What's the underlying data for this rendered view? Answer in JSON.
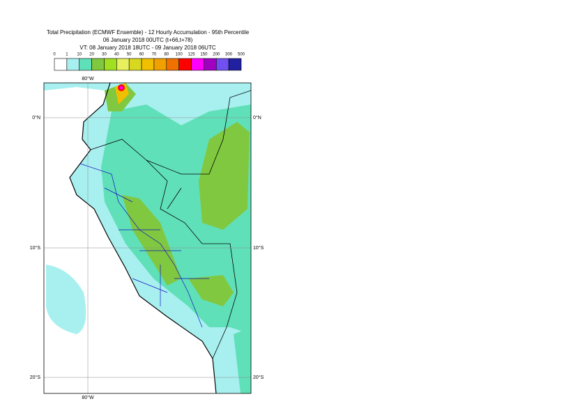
{
  "header": {
    "title": [
      "Total Precipitation (ECMWF Ensemble) - 12 Hourly Accumulation - 95th Percentile",
      "06 January 2018 00UTC (t+66,t+78)",
      "VT: 08 January 2018 18UTC - 09 January 2018 06UTC"
    ]
  },
  "legend": {
    "labels": [
      "0",
      "1",
      "10",
      "20",
      "30",
      "40",
      "50",
      "60",
      "70",
      "80",
      "100",
      "125",
      "150",
      "200",
      "300",
      "500"
    ],
    "colors": [
      "#ffffff",
      "#a8f0f0",
      "#60e0b8",
      "#80c840",
      "#a0e020",
      "#e8f060",
      "#d8d820",
      "#f0c000",
      "#f0a000",
      "#f07000",
      "#ff0000",
      "#ff00ff",
      "#a000c0",
      "#7050f0",
      "#2020a0",
      "#101050"
    ]
  },
  "map": {
    "top_label": "80°W",
    "bottom_label": "80°W",
    "left_labels": [
      "0°N",
      "10°S",
      "20°S"
    ],
    "right_labels": [
      "0°N",
      "10°S",
      "20°S"
    ]
  }
}
